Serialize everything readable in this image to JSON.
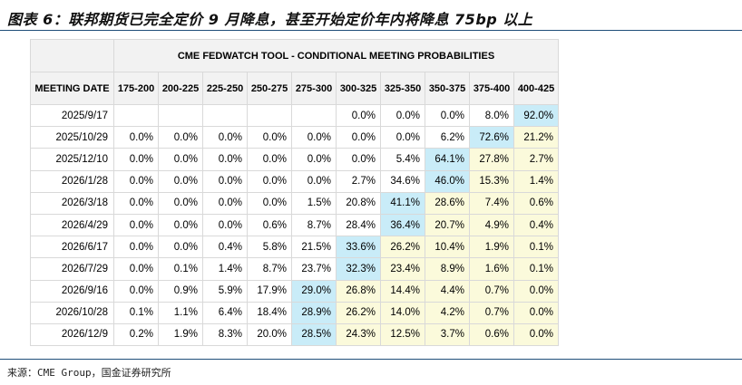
{
  "figure_title": "图表 6：联邦期货已完全定价 9 月降息，甚至开始定价年内将降息 75bp 以上",
  "source": "来源：CME Group，国金证券研究所",
  "colors": {
    "most_likely": "#c9ecf8",
    "other_high": "#fbfadb",
    "rule": "#1f4e79"
  },
  "chart_data": {
    "type": "table",
    "title": "CME FEDWATCH TOOL - CONDITIONAL MEETING PROBABILITIES",
    "row_header": "MEETING DATE",
    "columns": [
      "175-200",
      "200-225",
      "225-250",
      "250-275",
      "275-300",
      "300-325",
      "325-350",
      "350-375",
      "375-400",
      "400-425"
    ],
    "rows": [
      {
        "date": "2025/9/17",
        "values": [
          "",
          "",
          "",
          "",
          "",
          "0.0%",
          "0.0%",
          "0.0%",
          "8.0%",
          "92.0%"
        ],
        "blue": 9,
        "yellow": []
      },
      {
        "date": "2025/10/29",
        "values": [
          "0.0%",
          "0.0%",
          "0.0%",
          "0.0%",
          "0.0%",
          "0.0%",
          "0.0%",
          "6.2%",
          "72.6%",
          "21.2%"
        ],
        "blue": 8,
        "yellow": [
          9
        ]
      },
      {
        "date": "2025/12/10",
        "values": [
          "0.0%",
          "0.0%",
          "0.0%",
          "0.0%",
          "0.0%",
          "0.0%",
          "5.4%",
          "64.1%",
          "27.8%",
          "2.7%"
        ],
        "blue": 7,
        "yellow": [
          8,
          9
        ]
      },
      {
        "date": "2026/1/28",
        "values": [
          "0.0%",
          "0.0%",
          "0.0%",
          "0.0%",
          "0.0%",
          "2.7%",
          "34.6%",
          "46.0%",
          "15.3%",
          "1.4%"
        ],
        "blue": 7,
        "yellow": [
          8,
          9
        ]
      },
      {
        "date": "2026/3/18",
        "values": [
          "0.0%",
          "0.0%",
          "0.0%",
          "0.0%",
          "1.5%",
          "20.8%",
          "41.1%",
          "28.6%",
          "7.4%",
          "0.6%"
        ],
        "blue": 6,
        "yellow": [
          7,
          8,
          9
        ]
      },
      {
        "date": "2026/4/29",
        "values": [
          "0.0%",
          "0.0%",
          "0.0%",
          "0.6%",
          "8.7%",
          "28.4%",
          "36.4%",
          "20.7%",
          "4.9%",
          "0.4%"
        ],
        "blue": 6,
        "yellow": [
          7,
          8,
          9
        ]
      },
      {
        "date": "2026/6/17",
        "values": [
          "0.0%",
          "0.0%",
          "0.4%",
          "5.8%",
          "21.5%",
          "33.6%",
          "26.2%",
          "10.4%",
          "1.9%",
          "0.1%"
        ],
        "blue": 5,
        "yellow": [
          6,
          7,
          8,
          9
        ]
      },
      {
        "date": "2026/7/29",
        "values": [
          "0.0%",
          "0.1%",
          "1.4%",
          "8.7%",
          "23.7%",
          "32.3%",
          "23.4%",
          "8.9%",
          "1.6%",
          "0.1%"
        ],
        "blue": 5,
        "yellow": [
          6,
          7,
          8,
          9
        ]
      },
      {
        "date": "2026/9/16",
        "values": [
          "0.0%",
          "0.9%",
          "5.9%",
          "17.9%",
          "29.0%",
          "26.8%",
          "14.4%",
          "4.4%",
          "0.7%",
          "0.0%"
        ],
        "blue": 4,
        "yellow": [
          5,
          6,
          7,
          8,
          9
        ]
      },
      {
        "date": "2026/10/28",
        "values": [
          "0.1%",
          "1.1%",
          "6.4%",
          "18.4%",
          "28.9%",
          "26.2%",
          "14.0%",
          "4.2%",
          "0.7%",
          "0.0%"
        ],
        "blue": 4,
        "yellow": [
          5,
          6,
          7,
          8,
          9
        ]
      },
      {
        "date": "2026/12/9",
        "values": [
          "0.2%",
          "1.9%",
          "8.3%",
          "20.0%",
          "28.5%",
          "24.3%",
          "12.5%",
          "3.7%",
          "0.6%",
          "0.0%"
        ],
        "blue": 4,
        "yellow": [
          5,
          6,
          7,
          8,
          9
        ]
      }
    ]
  }
}
